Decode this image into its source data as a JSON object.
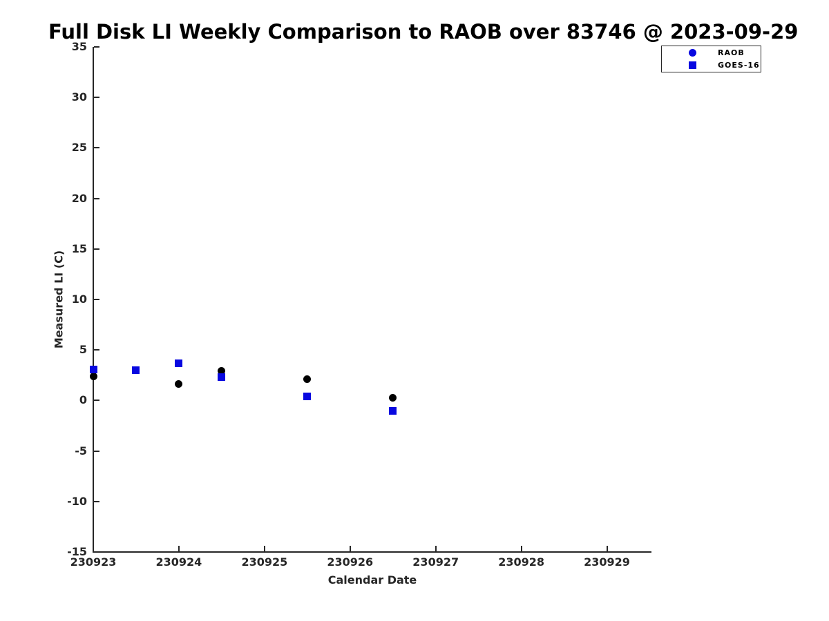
{
  "chart_data": {
    "type": "scatter",
    "title": "Full Disk LI Weekly Comparison to RAOB over 83746 @ 2023-09-29",
    "xlabel": "Calendar Date",
    "ylabel": "Measured LI (C)",
    "xlim": [
      230923,
      230929.52
    ],
    "ylim": [
      -15,
      35
    ],
    "xticks": [
      230923,
      230924,
      230925,
      230926,
      230927,
      230928,
      230929
    ],
    "yticks": [
      -15,
      -10,
      -5,
      0,
      5,
      10,
      15,
      20,
      25,
      30,
      35
    ],
    "grid": false,
    "legend": {
      "position": "outside-top-right",
      "entries": [
        {
          "label": "RAOB",
          "marker": "circle",
          "color": "#0808e0"
        },
        {
          "label": "GOES-16",
          "marker": "square",
          "color": "#0808e0"
        }
      ]
    },
    "series": [
      {
        "name": "RAOB",
        "marker": "circle",
        "color": "#000000",
        "points": [
          {
            "x": 230923.0,
            "y": 2.4
          },
          {
            "x": 230923.5,
            "y": 3.0
          },
          {
            "x": 230924.0,
            "y": 1.6
          },
          {
            "x": 230924.5,
            "y": 2.9
          },
          {
            "x": 230925.5,
            "y": 2.1
          },
          {
            "x": 230926.5,
            "y": 0.3
          }
        ]
      },
      {
        "name": "GOES-16",
        "marker": "square",
        "color": "#0808e0",
        "points": [
          {
            "x": 230923.0,
            "y": 3.1
          },
          {
            "x": 230923.5,
            "y": 3.0
          },
          {
            "x": 230924.0,
            "y": 3.7
          },
          {
            "x": 230924.5,
            "y": 2.3
          },
          {
            "x": 230925.5,
            "y": 0.4
          },
          {
            "x": 230926.5,
            "y": -1.0
          }
        ]
      }
    ],
    "colors": {
      "axis": "#262626",
      "title_text": "#000000",
      "background": "#ffffff"
    }
  }
}
